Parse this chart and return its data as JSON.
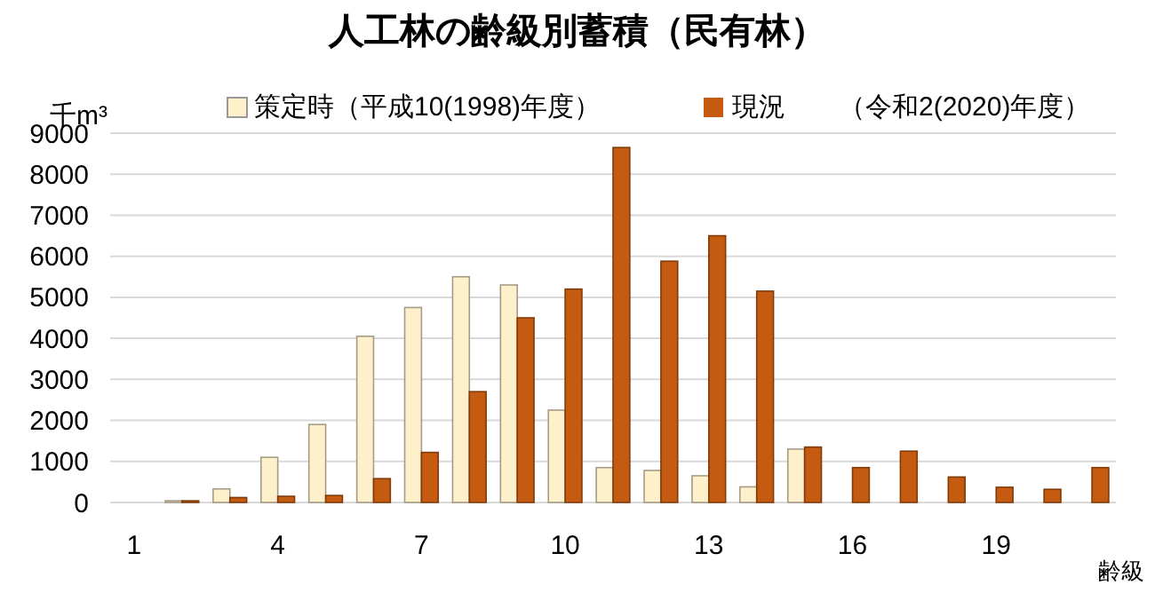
{
  "chart_data": {
    "type": "bar",
    "title": "人工林の齢級別蓄積（民有林）",
    "ylabel": "千m³",
    "xlabel": "齢級",
    "categories": [
      "1",
      null,
      null,
      "4",
      null,
      null,
      "7",
      null,
      null,
      "10",
      null,
      null,
      "13",
      null,
      null,
      "16",
      null,
      null,
      "19",
      null,
      null
    ],
    "series": [
      {
        "name": "策定時（平成10(1998)年度）",
        "color": "#fff0cc",
        "values": [
          0,
          40,
          330,
          1100,
          1900,
          4050,
          4750,
          5500,
          5300,
          2250,
          850,
          780,
          650,
          380,
          1300,
          0,
          0,
          0,
          0,
          0,
          0
        ]
      },
      {
        "name": "現況　　（令和2(2020)年度）",
        "color": "#c55a11",
        "values": [
          0,
          40,
          120,
          150,
          170,
          580,
          1220,
          2700,
          4500,
          5200,
          8650,
          5880,
          6500,
          5150,
          1350,
          850,
          1250,
          620,
          370,
          320,
          850
        ]
      }
    ],
    "ylim": [
      0,
      9000
    ],
    "yticks": [
      0,
      1000,
      2000,
      3000,
      4000,
      5000,
      6000,
      7000,
      8000,
      9000
    ],
    "grid": "y",
    "legend": "top"
  }
}
